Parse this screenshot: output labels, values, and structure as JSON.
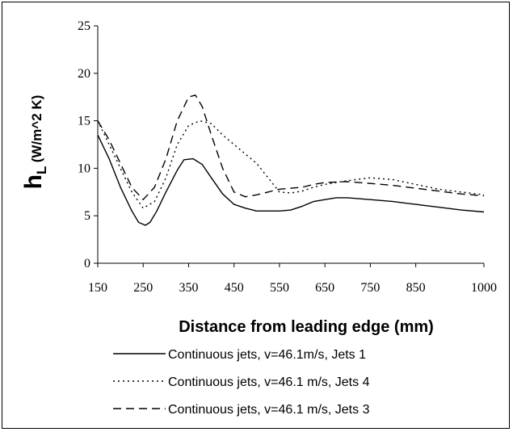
{
  "chart_data": {
    "type": "line",
    "xlabel": "Distance from leading edge (mm)",
    "ylabel_main": "h",
    "ylabel_sub": "L",
    "ylabel_units": " (W/m^2 K)",
    "xlim": [
      150,
      1000
    ],
    "ylim": [
      0,
      25
    ],
    "x_ticks": [
      150,
      250,
      350,
      450,
      550,
      650,
      750,
      850,
      1000
    ],
    "y_ticks": [
      0,
      5,
      10,
      15,
      20,
      25
    ],
    "grid": false,
    "legend_position": "bottom",
    "series": [
      {
        "name": "Continuous jets, v=46.1m/s, Jets 1",
        "style": "solid",
        "x": [
          150,
          175,
          200,
          225,
          240,
          255,
          265,
          280,
          300,
          325,
          340,
          360,
          380,
          400,
          425,
          450,
          475,
          500,
          525,
          550,
          575,
          600,
          625,
          650,
          675,
          700,
          750,
          800,
          850,
          900,
          950,
          1000
        ],
        "y": [
          13.5,
          11.0,
          8.0,
          5.5,
          4.3,
          4.0,
          4.3,
          5.5,
          7.5,
          9.8,
          10.9,
          11.0,
          10.4,
          9.0,
          7.3,
          6.2,
          5.8,
          5.5,
          5.5,
          5.5,
          5.6,
          6.0,
          6.5,
          6.7,
          6.9,
          6.9,
          6.7,
          6.5,
          6.2,
          5.9,
          5.6,
          5.4
        ]
      },
      {
        "name": "Continuous jets,  v=46.1 m/s, Jets 4",
        "style": "dotted",
        "x": [
          150,
          175,
          200,
          225,
          250,
          275,
          300,
          325,
          350,
          375,
          400,
          425,
          450,
          475,
          500,
          525,
          550,
          575,
          600,
          625,
          650,
          700,
          750,
          800,
          850,
          900,
          950,
          1000
        ],
        "y": [
          15.0,
          12.5,
          10.0,
          7.5,
          5.8,
          6.5,
          9.0,
          12.5,
          14.5,
          15.0,
          14.7,
          13.5,
          12.5,
          11.5,
          10.5,
          9.0,
          7.5,
          7.4,
          7.6,
          8.0,
          8.3,
          8.7,
          9.0,
          8.8,
          8.3,
          7.8,
          7.5,
          7.2
        ]
      },
      {
        "name": "Continuous jets, v=46.1 m/s, Jets 3",
        "style": "dashed",
        "x": [
          150,
          175,
          200,
          225,
          250,
          275,
          300,
          325,
          350,
          365,
          380,
          400,
          425,
          450,
          475,
          500,
          525,
          550,
          575,
          600,
          625,
          650,
          700,
          750,
          800,
          850,
          900,
          950,
          1000
        ],
        "y": [
          15.0,
          13.0,
          10.5,
          8.0,
          6.7,
          8.0,
          11.0,
          15.0,
          17.5,
          17.7,
          16.5,
          13.5,
          10.0,
          7.5,
          7.0,
          7.2,
          7.5,
          7.8,
          7.9,
          8.0,
          8.3,
          8.5,
          8.6,
          8.4,
          8.2,
          7.9,
          7.6,
          7.3,
          7.1
        ]
      }
    ]
  }
}
